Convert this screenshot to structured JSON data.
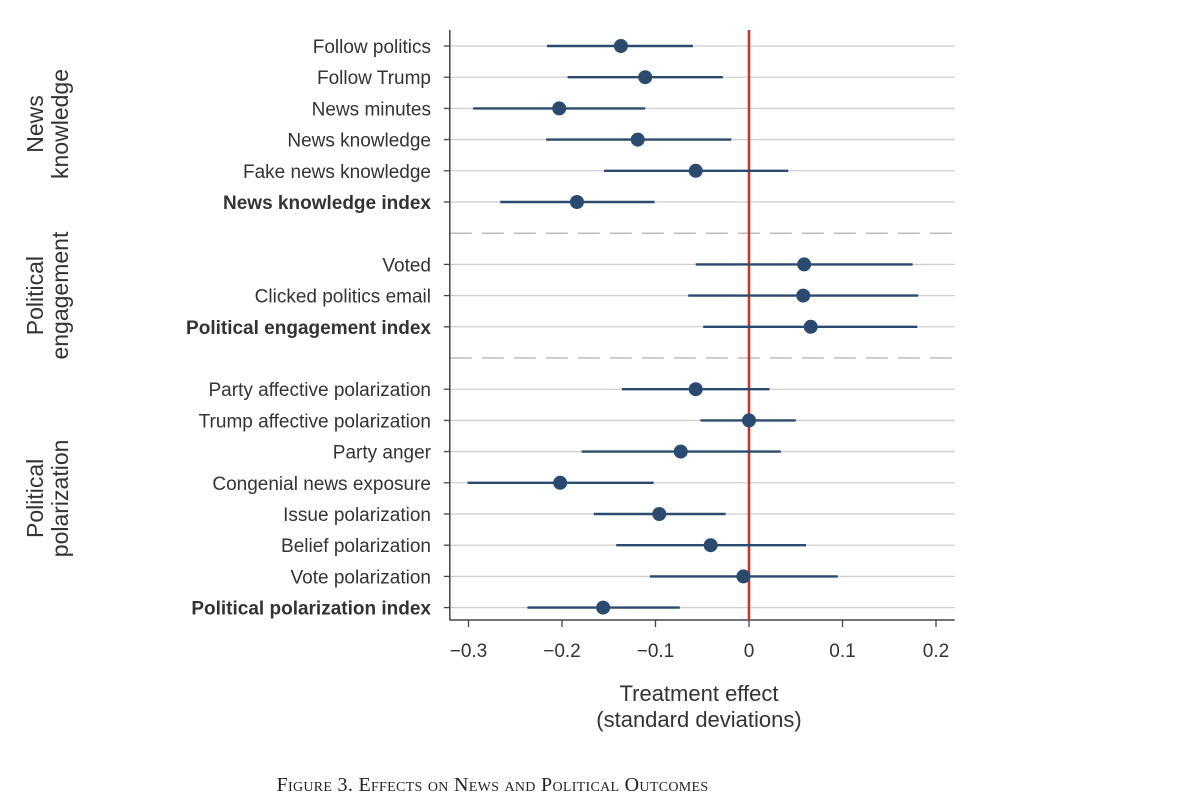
{
  "chart_data": {
    "type": "forest",
    "xlabel": [
      "Treatment effect",
      "(standard deviations)"
    ],
    "xlim": [
      -0.32,
      0.22
    ],
    "xticks": [
      -0.3,
      -0.2,
      -0.1,
      0,
      0.1,
      0.2
    ],
    "xtick_labels": [
      "−0.3",
      "−0.2",
      "−0.1",
      "0",
      "0.1",
      "0.2"
    ],
    "reference_line": 0,
    "colors": {
      "point": "#2b4a6f",
      "reference": "#c0392b",
      "grid": "#cccccc",
      "separator": "#bbbbbb",
      "axis": "#444444"
    },
    "groups": [
      {
        "name": [
          "News",
          "knowledge"
        ]
      },
      {
        "name": [
          "Political",
          "engagement"
        ]
      },
      {
        "name": [
          "Political",
          "polarization"
        ]
      }
    ],
    "rows": [
      {
        "label": "Follow politics",
        "group": 0,
        "bold": false,
        "estimate": -0.137,
        "ci": [
          -0.216,
          -0.06
        ]
      },
      {
        "label": "Follow Trump",
        "group": 0,
        "bold": false,
        "estimate": -0.111,
        "ci": [
          -0.194,
          -0.028
        ]
      },
      {
        "label": "News minutes",
        "group": 0,
        "bold": false,
        "estimate": -0.203,
        "ci": [
          -0.295,
          -0.111
        ]
      },
      {
        "label": "News knowledge",
        "group": 0,
        "bold": false,
        "estimate": -0.119,
        "ci": [
          -0.217,
          -0.019
        ]
      },
      {
        "label": "Fake news knowledge",
        "group": 0,
        "bold": false,
        "estimate": -0.057,
        "ci": [
          -0.155,
          0.042
        ]
      },
      {
        "label": "News knowledge index",
        "group": 0,
        "bold": true,
        "estimate": -0.184,
        "ci": [
          -0.266,
          -0.101
        ]
      },
      {
        "label": "Voted",
        "group": 1,
        "bold": false,
        "estimate": 0.059,
        "ci": [
          -0.057,
          0.175
        ]
      },
      {
        "label": "Clicked politics email",
        "group": 1,
        "bold": false,
        "estimate": 0.058,
        "ci": [
          -0.065,
          0.181
        ]
      },
      {
        "label": "Political engagement index",
        "group": 1,
        "bold": true,
        "estimate": 0.066,
        "ci": [
          -0.049,
          0.18
        ]
      },
      {
        "label": "Party affective polarization",
        "group": 2,
        "bold": false,
        "estimate": -0.057,
        "ci": [
          -0.136,
          0.022
        ]
      },
      {
        "label": "Trump affective polarization",
        "group": 2,
        "bold": false,
        "estimate": 0.0,
        "ci": [
          -0.052,
          0.05
        ]
      },
      {
        "label": "Party anger",
        "group": 2,
        "bold": false,
        "estimate": -0.073,
        "ci": [
          -0.179,
          0.034
        ]
      },
      {
        "label": "Congenial news exposure",
        "group": 2,
        "bold": false,
        "estimate": -0.202,
        "ci": [
          -0.301,
          -0.102
        ]
      },
      {
        "label": "Issue polarization",
        "group": 2,
        "bold": false,
        "estimate": -0.096,
        "ci": [
          -0.166,
          -0.025
        ]
      },
      {
        "label": "Belief polarization",
        "group": 2,
        "bold": false,
        "estimate": -0.041,
        "ci": [
          -0.142,
          0.061
        ]
      },
      {
        "label": "Vote polarization",
        "group": 2,
        "bold": false,
        "estimate": -0.006,
        "ci": [
          -0.106,
          0.095
        ]
      },
      {
        "label": "Political polarization index",
        "group": 2,
        "bold": true,
        "estimate": -0.156,
        "ci": [
          -0.237,
          -0.074
        ]
      }
    ]
  },
  "caption": "Figure 3. Effects on News and Political Outcomes"
}
